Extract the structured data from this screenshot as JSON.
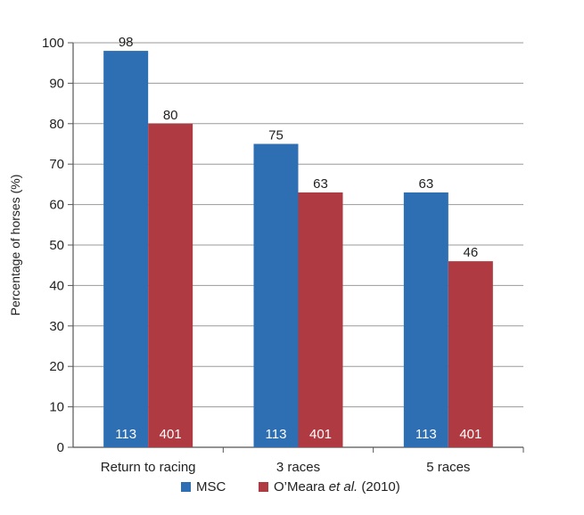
{
  "chart_data": {
    "type": "bar",
    "ylabel": "Percentage of horses (%)",
    "ylim": [
      0,
      100
    ],
    "yticks": [
      0,
      10,
      20,
      30,
      40,
      50,
      60,
      70,
      80,
      90,
      100
    ],
    "grid": true,
    "categories": [
      "Return to racing",
      "3 races",
      "5 races"
    ],
    "series": [
      {
        "name": "MSC",
        "color": "#2e6fb3",
        "values": [
          98,
          75,
          63
        ],
        "n_labels": [
          "113",
          "113",
          "113"
        ]
      },
      {
        "name": "O’Meara et al. (2010)",
        "name_parts": [
          "O’Meara ",
          "et al.",
          " (2010)"
        ],
        "color": "#b03a41",
        "values": [
          80,
          63,
          46
        ],
        "n_labels": [
          "401",
          "401",
          "401"
        ]
      }
    ],
    "legend_position": "bottom"
  }
}
